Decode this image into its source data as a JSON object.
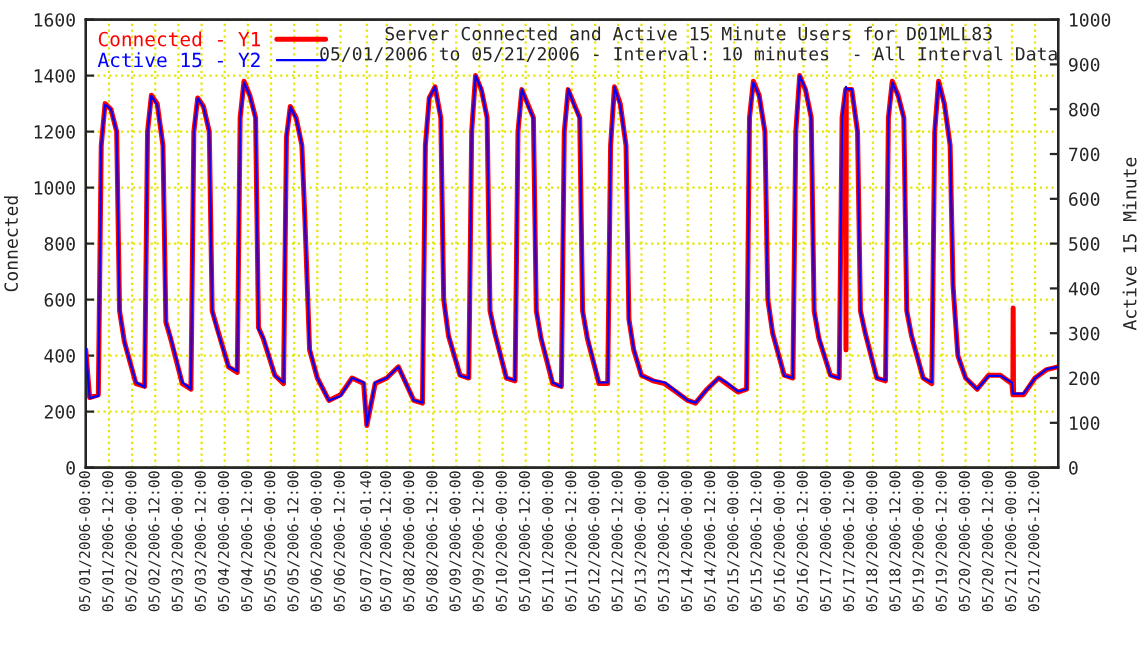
{
  "chart_data": {
    "type": "line",
    "title": "Server Connected and Active 15 Minute Users for D01MLL83",
    "subtitle": "05/01/2006 to 05/21/2006 - Interval: 10 minutes  - All Interval Data",
    "ylabel": "Connected",
    "y2label": "Active 15 Minute",
    "x": [
      "2006-05-01T00:00",
      "2006-05-01T02:00",
      "2006-05-01T06:30",
      "2006-05-01T08:00",
      "2006-05-01T10:00",
      "2006-05-01T13:00",
      "2006-05-01T16:00",
      "2006-05-01T17:30",
      "2006-05-01T20:00",
      "2006-05-02T02:00",
      "2006-05-02T06:30",
      "2006-05-02T08:00",
      "2006-05-02T10:00",
      "2006-05-02T13:00",
      "2006-05-02T16:00",
      "2006-05-02T17:30",
      "2006-05-02T20:00",
      "2006-05-03T02:00",
      "2006-05-03T06:30",
      "2006-05-03T08:00",
      "2006-05-03T10:00",
      "2006-05-03T13:00",
      "2006-05-03T16:00",
      "2006-05-03T17:30",
      "2006-05-03T20:00",
      "2006-05-04T02:00",
      "2006-05-04T06:30",
      "2006-05-04T08:00",
      "2006-05-04T10:00",
      "2006-05-04T13:00",
      "2006-05-04T16:00",
      "2006-05-04T17:30",
      "2006-05-04T20:00",
      "2006-05-05T02:00",
      "2006-05-05T06:30",
      "2006-05-05T08:00",
      "2006-05-05T10:00",
      "2006-05-05T13:00",
      "2006-05-05T16:00",
      "2006-05-05T17:30",
      "2006-05-05T20:00",
      "2006-05-06T00:00",
      "2006-05-06T06:00",
      "2006-05-06T12:00",
      "2006-05-06T18:00",
      "2006-05-07T00:00",
      "2006-05-07T01:40",
      "2006-05-07T06:00",
      "2006-05-07T12:00",
      "2006-05-07T18:00",
      "2006-05-08T02:00",
      "2006-05-08T06:30",
      "2006-05-08T08:00",
      "2006-05-08T10:00",
      "2006-05-08T13:00",
      "2006-05-08T16:00",
      "2006-05-08T17:30",
      "2006-05-08T20:00",
      "2006-05-09T02:00",
      "2006-05-09T06:30",
      "2006-05-09T08:00",
      "2006-05-09T10:00",
      "2006-05-09T13:00",
      "2006-05-09T16:00",
      "2006-05-09T17:30",
      "2006-05-09T20:00",
      "2006-05-10T02:00",
      "2006-05-10T06:30",
      "2006-05-10T08:00",
      "2006-05-10T10:00",
      "2006-05-10T13:00",
      "2006-05-10T16:00",
      "2006-05-10T17:30",
      "2006-05-10T20:00",
      "2006-05-11T02:00",
      "2006-05-11T06:30",
      "2006-05-11T08:00",
      "2006-05-11T10:00",
      "2006-05-11T13:00",
      "2006-05-11T16:00",
      "2006-05-11T17:30",
      "2006-05-11T20:00",
      "2006-05-12T02:00",
      "2006-05-12T06:30",
      "2006-05-12T08:00",
      "2006-05-12T10:00",
      "2006-05-12T13:00",
      "2006-05-12T16:00",
      "2006-05-12T17:30",
      "2006-05-12T20:00",
      "2006-05-13T00:00",
      "2006-05-13T06:00",
      "2006-05-13T12:00",
      "2006-05-13T18:00",
      "2006-05-14T00:00",
      "2006-05-14T04:00",
      "2006-05-14T10:00",
      "2006-05-14T16:00",
      "2006-05-14T20:00",
      "2006-05-15T02:00",
      "2006-05-15T06:30",
      "2006-05-15T08:00",
      "2006-05-15T10:00",
      "2006-05-15T13:00",
      "2006-05-15T16:00",
      "2006-05-15T17:30",
      "2006-05-15T20:00",
      "2006-05-16T02:00",
      "2006-05-16T06:30",
      "2006-05-16T08:00",
      "2006-05-16T10:00",
      "2006-05-16T13:00",
      "2006-05-16T16:00",
      "2006-05-16T17:30",
      "2006-05-16T20:00",
      "2006-05-17T02:00",
      "2006-05-17T06:30",
      "2006-05-17T08:00",
      "2006-05-17T09:50",
      "2006-05-17T10:00",
      "2006-05-17T10:10",
      "2006-05-17T13:00",
      "2006-05-17T16:00",
      "2006-05-17T17:30",
      "2006-05-17T20:00",
      "2006-05-18T02:00",
      "2006-05-18T06:30",
      "2006-05-18T08:00",
      "2006-05-18T10:00",
      "2006-05-18T13:00",
      "2006-05-18T16:00",
      "2006-05-18T17:30",
      "2006-05-18T20:00",
      "2006-05-19T02:00",
      "2006-05-19T06:30",
      "2006-05-19T08:00",
      "2006-05-19T10:00",
      "2006-05-19T13:00",
      "2006-05-19T16:00",
      "2006-05-19T17:30",
      "2006-05-19T20:00",
      "2006-05-20T00:00",
      "2006-05-20T06:00",
      "2006-05-20T12:00",
      "2006-05-20T18:00",
      "2006-05-21T00:00",
      "2006-05-21T00:30",
      "2006-05-21T00:40",
      "2006-05-21T00:50",
      "2006-05-21T06:00",
      "2006-05-21T12:00",
      "2006-05-21T18:00",
      "2006-05-21T23:50"
    ],
    "series": [
      {
        "name": "Connected - Y1",
        "color": "#ff0000",
        "values": [
          420,
          250,
          260,
          1150,
          1300,
          1280,
          1200,
          560,
          450,
          300,
          290,
          1200,
          1330,
          1300,
          1150,
          520,
          460,
          300,
          280,
          1200,
          1320,
          1290,
          1200,
          560,
          500,
          360,
          340,
          1250,
          1380,
          1330,
          1250,
          500,
          460,
          330,
          300,
          1180,
          1290,
          1250,
          1150,
          900,
          420,
          320,
          240,
          260,
          320,
          300,
          150,
          300,
          320,
          360,
          240,
          230,
          1150,
          1320,
          1360,
          1250,
          600,
          470,
          330,
          320,
          1200,
          1400,
          1350,
          1250,
          560,
          480,
          320,
          310,
          1200,
          1350,
          1300,
          1250,
          560,
          460,
          300,
          290,
          1200,
          1350,
          1300,
          1250,
          560,
          460,
          300,
          300,
          1150,
          1360,
          1300,
          1150,
          530,
          420,
          330,
          310,
          300,
          270,
          240,
          230,
          280,
          320,
          300,
          270,
          280,
          1250,
          1380,
          1330,
          1200,
          600,
          480,
          330,
          320,
          1200,
          1400,
          1350,
          1250,
          560,
          460,
          330,
          320,
          1250,
          1350,
          420,
          1350,
          1350,
          1200,
          560,
          480,
          320,
          310,
          1250,
          1380,
          1330,
          1250,
          560,
          470,
          320,
          300,
          1200,
          1380,
          1300,
          1150,
          650,
          400,
          320,
          280,
          330,
          330,
          300,
          260,
          570,
          260,
          260,
          320,
          350,
          360
        ]
      },
      {
        "name": "Active 15 - Y2",
        "color": "#0000ff",
        "axis": "y2",
        "values": [
          265,
          155,
          160,
          720,
          810,
          800,
          750,
          350,
          280,
          190,
          180,
          750,
          830,
          810,
          720,
          325,
          290,
          190,
          175,
          750,
          825,
          805,
          750,
          350,
          310,
          225,
          215,
          780,
          860,
          830,
          780,
          310,
          290,
          205,
          190,
          740,
          805,
          780,
          720,
          560,
          265,
          200,
          150,
          160,
          200,
          190,
          95,
          190,
          200,
          225,
          150,
          145,
          720,
          825,
          850,
          780,
          375,
          295,
          205,
          200,
          750,
          875,
          845,
          780,
          350,
          300,
          200,
          195,
          750,
          845,
          810,
          780,
          350,
          290,
          190,
          180,
          750,
          845,
          810,
          780,
          350,
          290,
          190,
          190,
          720,
          850,
          810,
          720,
          330,
          265,
          205,
          195,
          190,
          170,
          150,
          145,
          175,
          200,
          190,
          170,
          175,
          780,
          860,
          830,
          750,
          375,
          300,
          205,
          200,
          750,
          875,
          845,
          780,
          350,
          290,
          205,
          200,
          780,
          845,
          850,
          845,
          845,
          750,
          350,
          300,
          200,
          195,
          780,
          860,
          830,
          780,
          350,
          295,
          200,
          190,
          750,
          860,
          810,
          720,
          405,
          250,
          200,
          175,
          205,
          205,
          190,
          165,
          165,
          165,
          165,
          200,
          220,
          225
        ]
      }
    ],
    "xlim": [
      "2006-05-01T00:00",
      "2006-05-22T00:00"
    ],
    "xticks": [
      {
        "value": "2006-05-01T00:00",
        "label": "05/01/2006-00:00"
      },
      {
        "value": "2006-05-01T12:00",
        "label": "05/01/2006-12:00"
      },
      {
        "value": "2006-05-02T00:00",
        "label": "05/02/2006-00:00"
      },
      {
        "value": "2006-05-02T12:00",
        "label": "05/02/2006-12:00"
      },
      {
        "value": "2006-05-03T00:00",
        "label": "05/03/2006-00:00"
      },
      {
        "value": "2006-05-03T12:00",
        "label": "05/03/2006-12:00"
      },
      {
        "value": "2006-05-04T00:00",
        "label": "05/04/2006-00:00"
      },
      {
        "value": "2006-05-04T12:00",
        "label": "05/04/2006-12:00"
      },
      {
        "value": "2006-05-05T00:00",
        "label": "05/05/2006-00:00"
      },
      {
        "value": "2006-05-05T12:00",
        "label": "05/05/2006-12:00"
      },
      {
        "value": "2006-05-06T00:00",
        "label": "05/06/2006-00:00"
      },
      {
        "value": "2006-05-06T12:00",
        "label": "05/06/2006-12:00"
      },
      {
        "value": "2006-05-07T01:40",
        "label": "05/07/2006-01:40"
      },
      {
        "value": "2006-05-07T12:00",
        "label": "05/07/2006-12:00"
      },
      {
        "value": "2006-05-08T00:00",
        "label": "05/08/2006-00:00"
      },
      {
        "value": "2006-05-08T12:00",
        "label": "05/08/2006-12:00"
      },
      {
        "value": "2006-05-09T00:00",
        "label": "05/09/2006-00:00"
      },
      {
        "value": "2006-05-09T12:00",
        "label": "05/09/2006-12:00"
      },
      {
        "value": "2006-05-10T00:00",
        "label": "05/10/2006-00:00"
      },
      {
        "value": "2006-05-10T12:00",
        "label": "05/10/2006-12:00"
      },
      {
        "value": "2006-05-11T00:00",
        "label": "05/11/2006-00:00"
      },
      {
        "value": "2006-05-11T12:00",
        "label": "05/11/2006-12:00"
      },
      {
        "value": "2006-05-12T00:00",
        "label": "05/12/2006-00:00"
      },
      {
        "value": "2006-05-12T12:00",
        "label": "05/12/2006-12:00"
      },
      {
        "value": "2006-05-13T00:00",
        "label": "05/13/2006-00:00"
      },
      {
        "value": "2006-05-13T12:00",
        "label": "05/13/2006-12:00"
      },
      {
        "value": "2006-05-14T00:00",
        "label": "05/14/2006-00:00"
      },
      {
        "value": "2006-05-14T12:00",
        "label": "05/14/2006-12:00"
      },
      {
        "value": "2006-05-15T00:00",
        "label": "05/15/2006-00:00"
      },
      {
        "value": "2006-05-15T12:00",
        "label": "05/15/2006-12:00"
      },
      {
        "value": "2006-05-16T00:00",
        "label": "05/16/2006-00:00"
      },
      {
        "value": "2006-05-16T12:00",
        "label": "05/16/2006-12:00"
      },
      {
        "value": "2006-05-17T00:00",
        "label": "05/17/2006-00:00"
      },
      {
        "value": "2006-05-17T12:00",
        "label": "05/17/2006-12:00"
      },
      {
        "value": "2006-05-18T00:00",
        "label": "05/18/2006-00:00"
      },
      {
        "value": "2006-05-18T12:00",
        "label": "05/18/2006-12:00"
      },
      {
        "value": "2006-05-19T00:00",
        "label": "05/19/2006-00:00"
      },
      {
        "value": "2006-05-19T12:00",
        "label": "05/19/2006-12:00"
      },
      {
        "value": "2006-05-20T00:00",
        "label": "05/20/2006-00:00"
      },
      {
        "value": "2006-05-20T12:00",
        "label": "05/20/2006-12:00"
      },
      {
        "value": "2006-05-21T00:00",
        "label": "05/21/2006-00:00"
      },
      {
        "value": "2006-05-21T12:00",
        "label": "05/21/2006-12:00"
      }
    ],
    "ylim": [
      0,
      1600
    ],
    "yticks": [
      0,
      200,
      400,
      600,
      800,
      1000,
      1200,
      1400,
      1600
    ],
    "y2lim": [
      0,
      1000
    ],
    "y2ticks": [
      0,
      100,
      200,
      300,
      400,
      500,
      600,
      700,
      800,
      900,
      1000
    ],
    "grid": true,
    "legend": "top left",
    "marker": "none",
    "line_style": "solid"
  }
}
